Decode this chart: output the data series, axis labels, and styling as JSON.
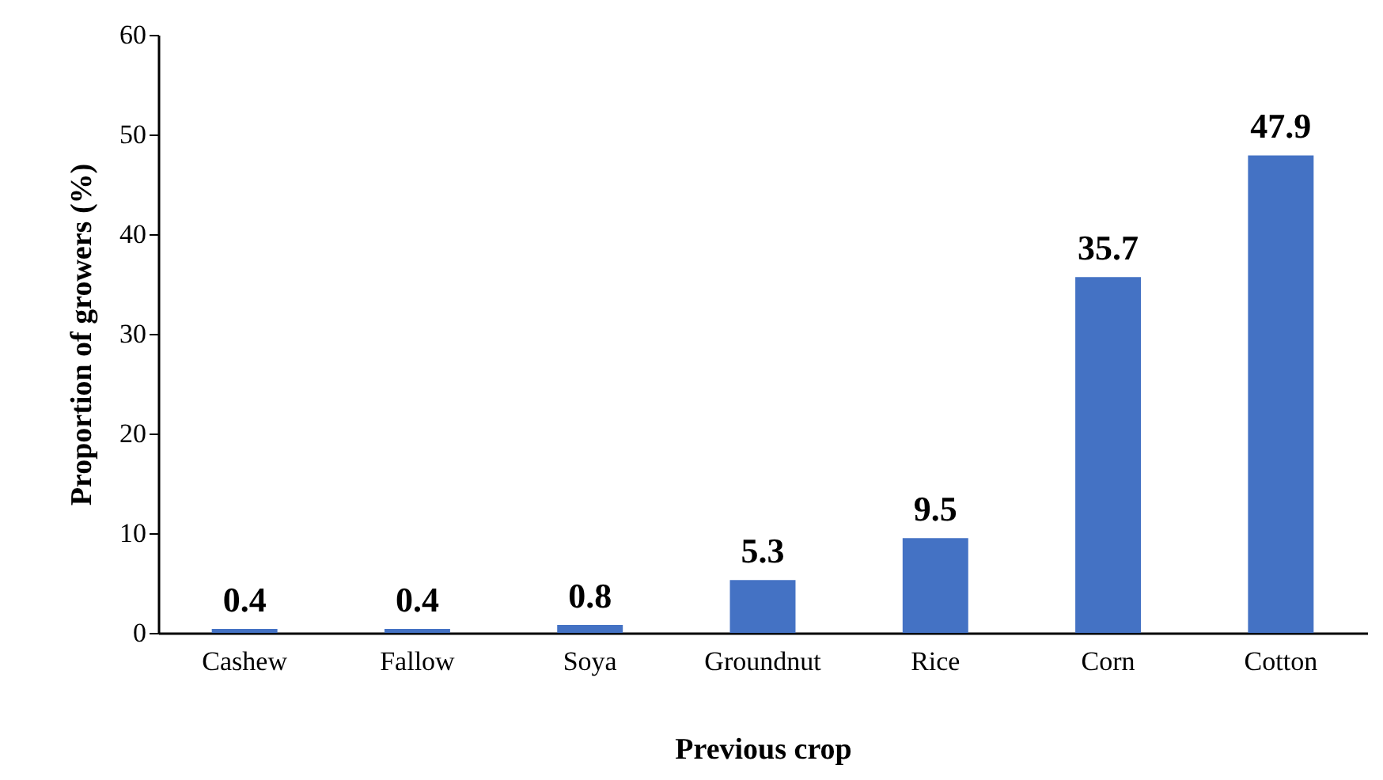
{
  "chart_data": {
    "type": "bar",
    "xlabel": "Previous crop",
    "ylabel": "Proportion of growers (%)",
    "categories": [
      "Cashew",
      "Fallow",
      "Soya",
      "Groundnut",
      "Rice",
      "Corn",
      "Cotton"
    ],
    "values": [
      0.4,
      0.4,
      0.8,
      5.3,
      9.5,
      35.7,
      47.9
    ],
    "color": "#4472c4",
    "ylim": [
      0,
      60
    ],
    "yticks": [
      0,
      10,
      20,
      30,
      40,
      50,
      60
    ],
    "grid": false,
    "data_labels": true
  }
}
